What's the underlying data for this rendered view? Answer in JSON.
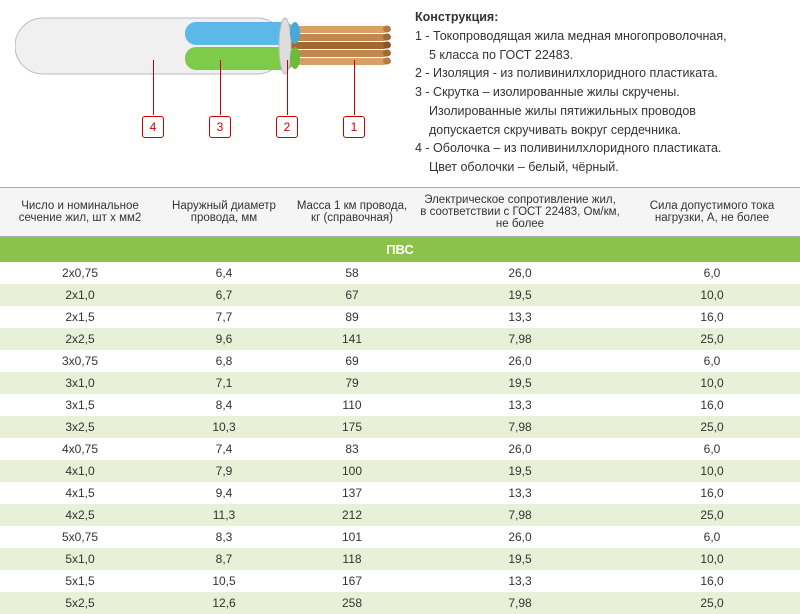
{
  "description": {
    "title": "Конструкция:",
    "lines": [
      "1 - Токопроводящая жила медная многопроволочная,",
      "     5 класса по ГОСТ 22483.",
      "2 - Изоляция - из поливинилхлоридного пластиката.",
      "3 - Скрутка – изолированные жилы скручены.",
      "     Изолированные жилы пятижильных проводов",
      "     допускается скручивать вокруг сердечника.",
      "4 - Оболочка – из поливинилхлоридного пластиката.",
      "     Цвет оболочки – белый, чёрный."
    ]
  },
  "callouts": [
    "4",
    "3",
    "2",
    "1"
  ],
  "cable": {
    "sheath_color": "#f0f0f0",
    "sheath_stroke": "#bbb",
    "core_colors": [
      "#5bb8e8",
      "#7ecb4a"
    ],
    "copper_light": "#d9a066",
    "copper_dark": "#a0692e"
  },
  "table": {
    "headers": [
      "Число и номинальное сечение жил, шт х мм2",
      "Наружный диаметр провода, мм",
      "Масса 1 км провода, кг (справочная)",
      "Электрическое сопротивление жил, в соответствии с ГОСТ 22483, Ом/км, не более",
      "Сила допустимого тока нагрузки, А, не более"
    ],
    "section_label": "ПВС",
    "rows": [
      [
        "2х0,75",
        "6,4",
        "58",
        "26,0",
        "6,0"
      ],
      [
        "2х1,0",
        "6,7",
        "67",
        "19,5",
        "10,0"
      ],
      [
        "2х1,5",
        "7,7",
        "89",
        "13,3",
        "16,0"
      ],
      [
        "2х2,5",
        "9,6",
        "141",
        "7,98",
        "25,0"
      ],
      [
        "3х0,75",
        "6,8",
        "69",
        "26,0",
        "6,0"
      ],
      [
        "3х1,0",
        "7,1",
        "79",
        "19,5",
        "10,0"
      ],
      [
        "3х1,5",
        "8,4",
        "110",
        "13,3",
        "16,0"
      ],
      [
        "3х2,5",
        "10,3",
        "175",
        "7,98",
        "25,0"
      ],
      [
        "4х0,75",
        "7,4",
        "83",
        "26,0",
        "6,0"
      ],
      [
        "4х1,0",
        "7,9",
        "100",
        "19,5",
        "10,0"
      ],
      [
        "4х1,5",
        "9,4",
        "137",
        "13,3",
        "16,0"
      ],
      [
        "4х2,5",
        "11,3",
        "212",
        "7,98",
        "25,0"
      ],
      [
        "5х0,75",
        "8,3",
        "101",
        "26,0",
        "6,0"
      ],
      [
        "5х1,0",
        "8,7",
        "118",
        "19,5",
        "10,0"
      ],
      [
        "5х1,5",
        "10,5",
        "167",
        "13,3",
        "16,0"
      ],
      [
        "5х2,5",
        "12,6",
        "258",
        "7,98",
        "25,0"
      ]
    ]
  }
}
